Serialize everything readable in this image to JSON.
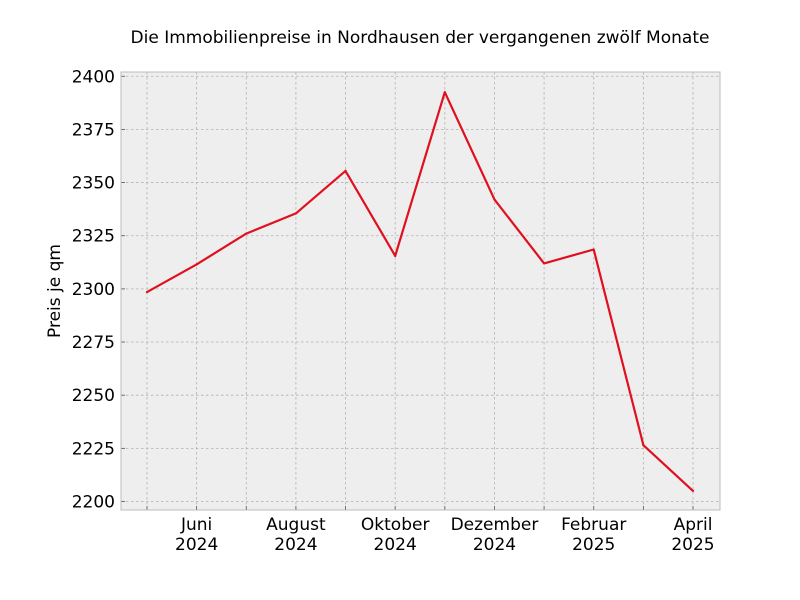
{
  "chart_data": {
    "type": "line",
    "title": "Die Immobilienpreise in Nordhausen der vergangenen zwölf Monate",
    "xlabel": "",
    "ylabel": "Preis je qm",
    "x": [
      "2024-05",
      "2024-06",
      "2024-07",
      "2024-08",
      "2024-09",
      "2024-10",
      "2024-11",
      "2024-12",
      "2025-01",
      "2025-02",
      "2025-03",
      "2025-04"
    ],
    "x_ticks": [
      {
        "x": "2024-06",
        "lines": [
          "Juni",
          "2024"
        ]
      },
      {
        "x": "2024-08",
        "lines": [
          "August",
          "2024"
        ]
      },
      {
        "x": "2024-10",
        "lines": [
          "Oktober",
          "2024"
        ]
      },
      {
        "x": "2024-12",
        "lines": [
          "Dezember",
          "2024"
        ]
      },
      {
        "x": "2025-02",
        "lines": [
          "Februar",
          "2025"
        ]
      },
      {
        "x": "2025-04",
        "lines": [
          "April",
          "2025"
        ]
      }
    ],
    "y_ticks": [
      2200,
      2225,
      2250,
      2275,
      2300,
      2325,
      2350,
      2375,
      2400
    ],
    "ylim": [
      2196,
      2402
    ],
    "grid": true,
    "series": [
      {
        "values": [
          2298.5,
          2311.5,
          2326,
          2335.5,
          2355.5,
          2315.5,
          2392.5,
          2342,
          2312,
          2318.5,
          2226.5,
          2205
        ],
        "color": "#e0101f"
      }
    ],
    "colors": {
      "plot_background": "#eeeeee",
      "plot_border": "#bcbcbc",
      "grid": "#b0b0b0"
    }
  }
}
